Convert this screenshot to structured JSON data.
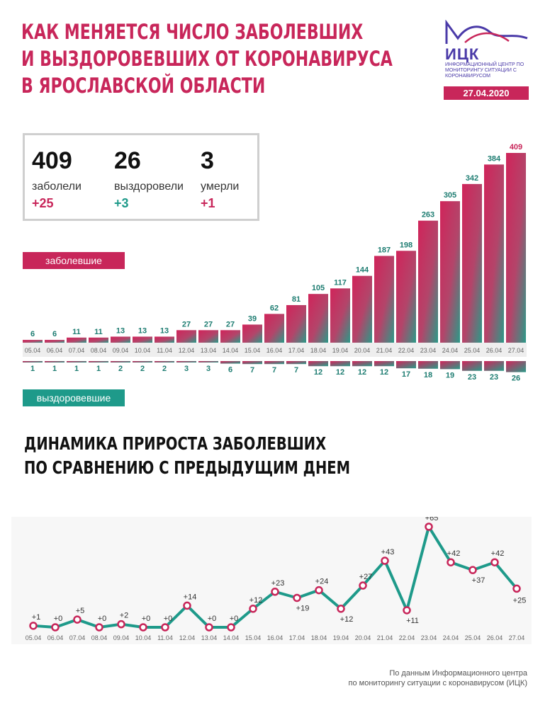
{
  "header": {
    "title_lines": [
      "КАК МЕНЯЕТСЯ ЧИСЛО ЗАБОЛЕВШИХ",
      "И ВЫЗДОРОВЕВШИХ ОТ КОРОНАВИРУСА",
      "В ЯРОСЛАВСКОЙ ОБЛАСТИ"
    ],
    "date": "27.04.2020"
  },
  "logo": {
    "name": "ИЦК",
    "subtitle": "ИНФОРМАЦИОННЫЙ ЦЕНТР ПО МОНИТОРИНГУ СИТУАЦИИ С КОРОНАВИРУСОМ"
  },
  "stats": [
    {
      "value": "409",
      "label": "заболели",
      "delta": "+25"
    },
    {
      "value": "26",
      "label": "выздоровели",
      "delta": "+3"
    },
    {
      "value": "3",
      "label": "умерли",
      "delta": "+1"
    }
  ],
  "legend": {
    "infected": "заболевшие",
    "recovered": "выздоровевшие"
  },
  "section2": {
    "title_lines": [
      "ДИНАМИКА ПРИРОСТА ЗАБОЛЕВШИХ",
      "ПО СРАВНЕНИЮ С ПРЕДЫДУЩИМ ДНЕМ"
    ]
  },
  "source_lines": [
    "По данным Информационного центра",
    "по мониторингу ситуации с коронавирусом (ИЦК)"
  ],
  "colors": {
    "accent": "#c8265a",
    "teal": "#1e9a8a",
    "brand": "#4a3aa8"
  },
  "chart_data": [
    {
      "type": "bar",
      "categories": [
        "05.04",
        "06.04",
        "07.04",
        "08.04",
        "09.04",
        "10.04",
        "11.04",
        "12.04",
        "13.04",
        "14.04",
        "15.04",
        "16.04",
        "17.04",
        "18.04",
        "19.04",
        "20.04",
        "21.04",
        "22.04",
        "23.04",
        "24.04",
        "25.04",
        "26.04",
        "27.04"
      ],
      "series": [
        {
          "name": "заболевшие",
          "values": [
            6,
            6,
            11,
            11,
            13,
            13,
            13,
            27,
            27,
            27,
            39,
            62,
            81,
            105,
            117,
            144,
            187,
            198,
            263,
            305,
            342,
            384,
            409
          ]
        },
        {
          "name": "выздоровевшие",
          "values": [
            1,
            1,
            1,
            1,
            2,
            2,
            2,
            3,
            3,
            6,
            7,
            7,
            7,
            12,
            12,
            12,
            12,
            17,
            18,
            19,
            23,
            23,
            26
          ]
        }
      ]
    },
    {
      "type": "line",
      "title": "ДИНАМИКА ПРИРОСТА ЗАБОЛЕВШИХ ПО СРАВНЕНИЮ С ПРЕДЫДУЩИМ ДНЕМ",
      "x": [
        "05.04",
        "06.04",
        "07.04",
        "08.04",
        "09.04",
        "10.04",
        "11.04",
        "12.04",
        "13.04",
        "14.04",
        "15.04",
        "16.04",
        "17.04",
        "18.04",
        "19.04",
        "20.04",
        "21.04",
        "22.04",
        "23.04",
        "24.04",
        "25.04",
        "26.04",
        "27.04"
      ],
      "values": [
        1,
        0,
        5,
        0,
        2,
        0,
        0,
        14,
        0,
        0,
        12,
        23,
        19,
        24,
        12,
        27,
        43,
        11,
        65,
        42,
        37,
        42,
        25
      ],
      "labels": [
        "+1",
        "+0",
        "+5",
        "+0",
        "+2",
        "+0",
        "+0",
        "+14",
        "+0",
        "+0",
        "+12",
        "+23",
        "+19",
        "+24",
        "+12",
        "+27",
        "+43",
        "+11",
        "+65",
        "+42",
        "+37",
        "+42",
        "+25"
      ],
      "ylim": [
        0,
        65
      ]
    }
  ]
}
